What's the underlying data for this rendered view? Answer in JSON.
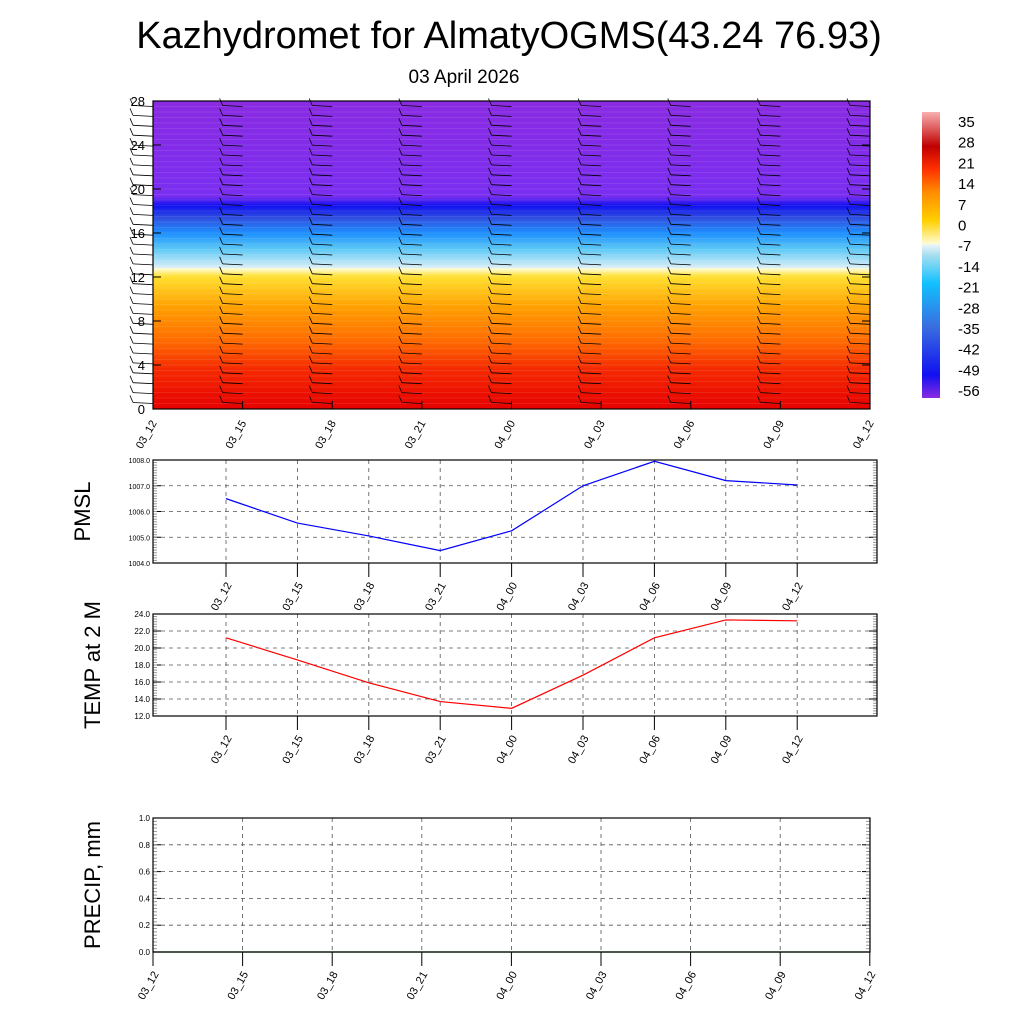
{
  "title": "Kazhydromet for AlmatyOGMS(43.24 76.93)",
  "subtitle": "03 April 2026",
  "chart_data": [
    {
      "type": "heatmap",
      "name": "temperature-height-section",
      "xlabel": "",
      "ylabel": "",
      "x_ticks": [
        "03_12",
        "03_15",
        "03_18",
        "03_21",
        "04_00",
        "04_03",
        "04_06",
        "04_09",
        "04_12"
      ],
      "y_ticks": [
        "0",
        "4",
        "8",
        "12",
        "16",
        "20",
        "24",
        "28"
      ],
      "ylim": [
        0,
        28
      ],
      "colorbar_labels": [
        "35",
        "28",
        "21",
        "14",
        "7",
        "0",
        "-7",
        "-14",
        "-21",
        "-28",
        "-35",
        "-42",
        "-49",
        "-56"
      ],
      "colors": {
        "low": "#e00000",
        "mid": "#ff8c00",
        "yellow": "#ffe600",
        "lightblue": "#bfe6f5",
        "blue": "#1e90ff",
        "deep": "#1010ee",
        "top": "#8a2be2"
      },
      "overlay": "wind barbs"
    },
    {
      "type": "line",
      "name": "pmsl",
      "ylabel": "PMSL",
      "x": [
        "03_12",
        "03_15",
        "03_18",
        "03_21",
        "04_00",
        "04_03",
        "04_06",
        "04_09",
        "04_12"
      ],
      "values": [
        1006.5,
        1005.55,
        1005.05,
        1004.48,
        1005.25,
        1007.0,
        1007.95,
        1007.2,
        1007.03
      ],
      "y_ticks": [
        "1004.0",
        "1005.0",
        "1006.0",
        "1007.0",
        "1008.0"
      ],
      "ylim": [
        1004,
        1008
      ],
      "color": "#0000ff"
    },
    {
      "type": "line",
      "name": "temp-2m",
      "ylabel": "TEMP at 2 M",
      "x": [
        "03_12",
        "03_15",
        "03_18",
        "03_21",
        "04_00",
        "04_03",
        "04_06",
        "04_09",
        "04_12"
      ],
      "values": [
        21.2,
        18.6,
        15.9,
        13.7,
        12.9,
        16.8,
        21.2,
        23.3,
        23.2
      ],
      "y_ticks": [
        "12.0",
        "14.0",
        "16.0",
        "18.0",
        "20.0",
        "22.0",
        "24.0"
      ],
      "ylim": [
        12,
        24
      ],
      "color": "#ff0000"
    },
    {
      "type": "line",
      "name": "precip",
      "ylabel": "PRECIP, mm",
      "x_ticks": [
        "03_12",
        "03_15",
        "03_18",
        "03_21",
        "04_00",
        "04_03",
        "04_06",
        "04_09",
        "04_12"
      ],
      "values": [
        0,
        0,
        0,
        0,
        0,
        0,
        0,
        0,
        0
      ],
      "y_ticks": [
        "0.0",
        "0.2",
        "0.4",
        "0.6",
        "0.8",
        "1.0"
      ],
      "ylim": [
        0,
        1
      ],
      "color": "#006400"
    }
  ]
}
